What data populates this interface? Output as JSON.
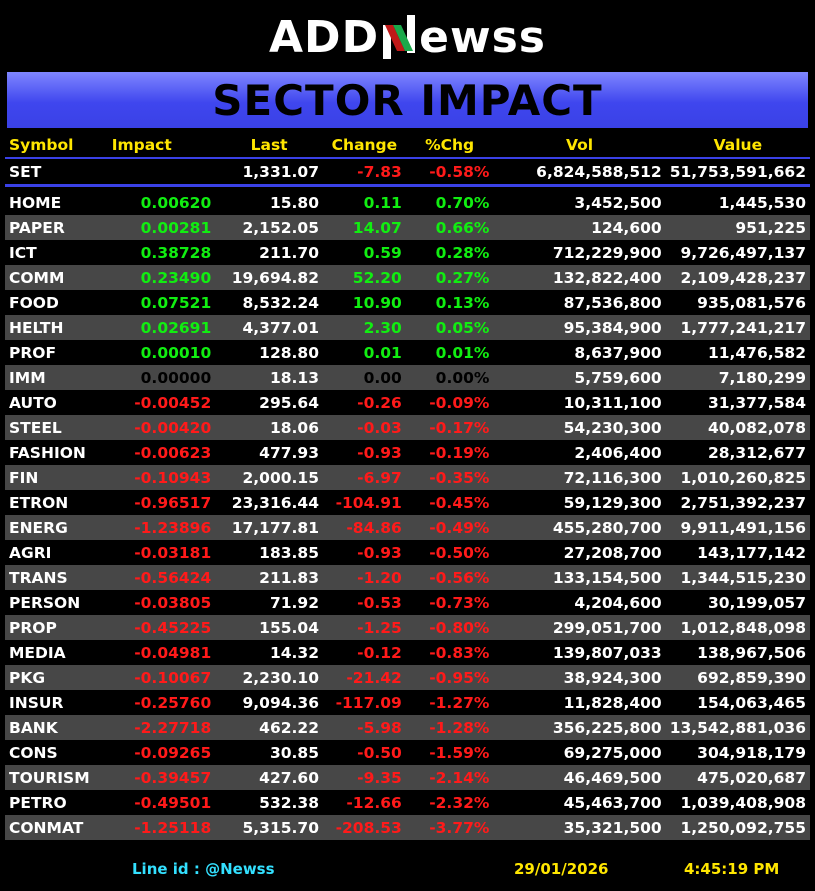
{
  "logo": {
    "prefix": "ADD",
    "suffix": "ewss"
  },
  "banner": {
    "title": "SECTOR IMPACT"
  },
  "columns": [
    "Symbol",
    "Impact",
    "Last",
    "Change",
    "%Chg",
    "Vol",
    "Value"
  ],
  "set_row": {
    "symbol": "SET",
    "impact": "",
    "last": "1,331.07",
    "change": "-7.83",
    "pct": "-0.58%",
    "vol": "6,824,588,512",
    "value": "51,753,591,662"
  },
  "rows": [
    {
      "symbol": "HOME",
      "impact": "0.00620",
      "last": "15.80",
      "change": "0.11",
      "pct": "0.70%",
      "vol": "3,452,500",
      "value": "1,445,530",
      "dir": "pos"
    },
    {
      "symbol": "PAPER",
      "impact": "0.00281",
      "last": "2,152.05",
      "change": "14.07",
      "pct": "0.66%",
      "vol": "124,600",
      "value": "951,225",
      "dir": "pos"
    },
    {
      "symbol": "ICT",
      "impact": "0.38728",
      "last": "211.70",
      "change": "0.59",
      "pct": "0.28%",
      "vol": "712,229,900",
      "value": "9,726,497,137",
      "dir": "pos"
    },
    {
      "symbol": "COMM",
      "impact": "0.23490",
      "last": "19,694.82",
      "change": "52.20",
      "pct": "0.27%",
      "vol": "132,822,400",
      "value": "2,109,428,237",
      "dir": "pos"
    },
    {
      "symbol": "FOOD",
      "impact": "0.07521",
      "last": "8,532.24",
      "change": "10.90",
      "pct": "0.13%",
      "vol": "87,536,800",
      "value": "935,081,576",
      "dir": "pos"
    },
    {
      "symbol": "HELTH",
      "impact": "0.02691",
      "last": "4,377.01",
      "change": "2.30",
      "pct": "0.05%",
      "vol": "95,384,900",
      "value": "1,777,241,217",
      "dir": "pos"
    },
    {
      "symbol": "PROF",
      "impact": "0.00010",
      "last": "128.80",
      "change": "0.01",
      "pct": "0.01%",
      "vol": "8,637,900",
      "value": "11,476,582",
      "dir": "pos"
    },
    {
      "symbol": "IMM",
      "impact": "0.00000",
      "last": "18.13",
      "change": "0.00",
      "pct": "0.00%",
      "vol": "5,759,600",
      "value": "7,180,299",
      "dir": "zero"
    },
    {
      "symbol": "AUTO",
      "impact": "-0.00452",
      "last": "295.64",
      "change": "-0.26",
      "pct": "-0.09%",
      "vol": "10,311,100",
      "value": "31,377,584",
      "dir": "neg"
    },
    {
      "symbol": "STEEL",
      "impact": "-0.00420",
      "last": "18.06",
      "change": "-0.03",
      "pct": "-0.17%",
      "vol": "54,230,300",
      "value": "40,082,078",
      "dir": "neg"
    },
    {
      "symbol": "FASHION",
      "impact": "-0.00623",
      "last": "477.93",
      "change": "-0.93",
      "pct": "-0.19%",
      "vol": "2,406,400",
      "value": "28,312,677",
      "dir": "neg"
    },
    {
      "symbol": "FIN",
      "impact": "-0.10943",
      "last": "2,000.15",
      "change": "-6.97",
      "pct": "-0.35%",
      "vol": "72,116,300",
      "value": "1,010,260,825",
      "dir": "neg"
    },
    {
      "symbol": "ETRON",
      "impact": "-0.96517",
      "last": "23,316.44",
      "change": "-104.91",
      "pct": "-0.45%",
      "vol": "59,129,300",
      "value": "2,751,392,237",
      "dir": "neg"
    },
    {
      "symbol": "ENERG",
      "impact": "-1.23896",
      "last": "17,177.81",
      "change": "-84.86",
      "pct": "-0.49%",
      "vol": "455,280,700",
      "value": "9,911,491,156",
      "dir": "neg"
    },
    {
      "symbol": "AGRI",
      "impact": "-0.03181",
      "last": "183.85",
      "change": "-0.93",
      "pct": "-0.50%",
      "vol": "27,208,700",
      "value": "143,177,142",
      "dir": "neg"
    },
    {
      "symbol": "TRANS",
      "impact": "-0.56424",
      "last": "211.83",
      "change": "-1.20",
      "pct": "-0.56%",
      "vol": "133,154,500",
      "value": "1,344,515,230",
      "dir": "neg"
    },
    {
      "symbol": "PERSON",
      "impact": "-0.03805",
      "last": "71.92",
      "change": "-0.53",
      "pct": "-0.73%",
      "vol": "4,204,600",
      "value": "30,199,057",
      "dir": "neg"
    },
    {
      "symbol": "PROP",
      "impact": "-0.45225",
      "last": "155.04",
      "change": "-1.25",
      "pct": "-0.80%",
      "vol": "299,051,700",
      "value": "1,012,848,098",
      "dir": "neg"
    },
    {
      "symbol": "MEDIA",
      "impact": "-0.04981",
      "last": "14.32",
      "change": "-0.12",
      "pct": "-0.83%",
      "vol": "139,807,033",
      "value": "138,967,506",
      "dir": "neg"
    },
    {
      "symbol": "PKG",
      "impact": "-0.10067",
      "last": "2,230.10",
      "change": "-21.42",
      "pct": "-0.95%",
      "vol": "38,924,300",
      "value": "692,859,390",
      "dir": "neg"
    },
    {
      "symbol": "INSUR",
      "impact": "-0.25760",
      "last": "9,094.36",
      "change": "-117.09",
      "pct": "-1.27%",
      "vol": "11,828,400",
      "value": "154,063,465",
      "dir": "neg"
    },
    {
      "symbol": "BANK",
      "impact": "-2.27718",
      "last": "462.22",
      "change": "-5.98",
      "pct": "-1.28%",
      "vol": "356,225,800",
      "value": "13,542,881,036",
      "dir": "neg"
    },
    {
      "symbol": "CONS",
      "impact": "-0.09265",
      "last": "30.85",
      "change": "-0.50",
      "pct": "-1.59%",
      "vol": "69,275,000",
      "value": "304,918,179",
      "dir": "neg"
    },
    {
      "symbol": "TOURISM",
      "impact": "-0.39457",
      "last": "427.60",
      "change": "-9.35",
      "pct": "-2.14%",
      "vol": "46,469,500",
      "value": "475,020,687",
      "dir": "neg"
    },
    {
      "symbol": "PETRO",
      "impact": "-0.49501",
      "last": "532.38",
      "change": "-12.66",
      "pct": "-2.32%",
      "vol": "45,463,700",
      "value": "1,039,408,908",
      "dir": "neg"
    },
    {
      "symbol": "CONMAT",
      "impact": "-1.25118",
      "last": "5,315.70",
      "change": "-208.53",
      "pct": "-3.77%",
      "vol": "35,321,500",
      "value": "1,250,092,755",
      "dir": "neg"
    }
  ],
  "footer": {
    "line_id": "Line id  : @Newss",
    "date": "29/01/2026",
    "time": "4:45:19 PM"
  },
  "colors": {
    "positive": "#11ee11",
    "negative": "#ff1a1a",
    "header": "#ffe600",
    "accent": "#3a41e6",
    "line_id": "#33e0ff"
  }
}
